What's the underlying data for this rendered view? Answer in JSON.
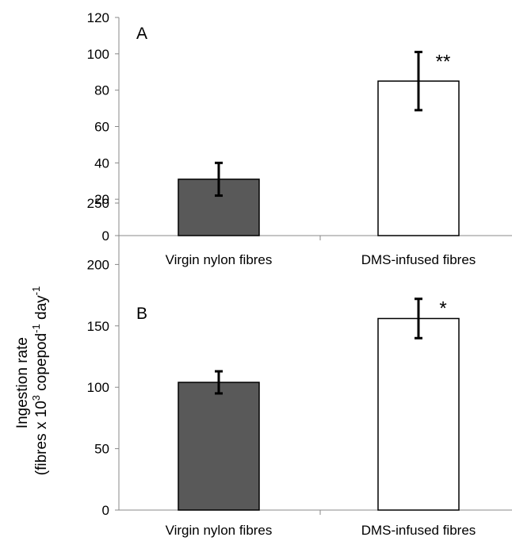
{
  "ylabel": {
    "line1": "Ingestion rate",
    "line2_prefix": "(fibres x 10",
    "line2_sup1": "3",
    "line2_mid": " copepod",
    "line2_sup2": "-1",
    "line2_end": " day",
    "line2_sup3": "-1"
  },
  "colors": {
    "virgin": "#595959",
    "dms": "#ffffff",
    "outline": "#000000",
    "axis": "#888888"
  },
  "chart_data": [
    {
      "type": "bar",
      "panel_label": "A",
      "categories": [
        "Virgin nylon fibres",
        "DMS-infused fibres"
      ],
      "values": [
        31,
        85
      ],
      "error_low": [
        22,
        69
      ],
      "error_high": [
        40,
        101
      ],
      "significance": [
        "",
        "**"
      ],
      "ylim": [
        0,
        120
      ],
      "yticks": [
        0,
        20,
        40,
        60,
        80,
        100,
        120
      ],
      "grid": false
    },
    {
      "type": "bar",
      "panel_label": "B",
      "categories": [
        "Virgin nylon fibres",
        "DMS-infused fibres"
      ],
      "values": [
        104,
        156
      ],
      "error_low": [
        95,
        140
      ],
      "error_high": [
        113,
        172
      ],
      "significance": [
        "",
        "*"
      ],
      "ylim": [
        0,
        250
      ],
      "yticks": [
        0,
        50,
        100,
        150,
        200,
        250
      ],
      "grid": false
    }
  ]
}
